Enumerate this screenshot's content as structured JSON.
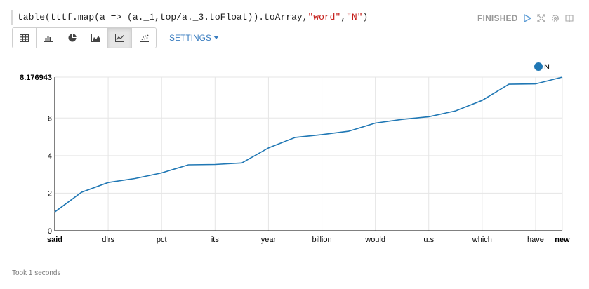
{
  "paragraph": {
    "code": "table(tttf.map(a => (a._1,top/a._3.toFloat)).toArray,",
    "code_str1": "\"word\"",
    "code_comma": ",",
    "code_str2": "\"N\"",
    "code_end": ")",
    "status": "FINISHED",
    "took": "Took 1 seconds"
  },
  "toolbar": {
    "buttons": [
      {
        "icon": "table-icon"
      },
      {
        "icon": "bar-chart-icon"
      },
      {
        "icon": "pie-chart-icon"
      },
      {
        "icon": "area-chart-icon"
      },
      {
        "icon": "line-chart-icon",
        "active": true
      },
      {
        "icon": "scatter-chart-icon"
      }
    ],
    "settings_label": "SETTINGS"
  },
  "colors": {
    "series": "#1f77b4",
    "accent": "#3a7dc0"
  },
  "chart_data": {
    "type": "line",
    "categories": [
      "said",
      "",
      "dlrs",
      "",
      "pct",
      "",
      "its",
      "",
      "year",
      "",
      "billion",
      "",
      "would",
      "",
      "u.s",
      "",
      "which",
      "",
      "have",
      "new"
    ],
    "tick_labels": [
      "said",
      "dlrs",
      "pct",
      "its",
      "year",
      "billion",
      "would",
      "u.s",
      "which",
      "have",
      "new"
    ],
    "series": [
      {
        "name": "N",
        "values": [
          1.0,
          2.05,
          2.57,
          2.78,
          3.08,
          3.51,
          3.53,
          3.61,
          4.41,
          4.97,
          5.12,
          5.3,
          5.73,
          5.93,
          6.07,
          6.38,
          6.94,
          7.8,
          7.82,
          8.176943
        ]
      }
    ],
    "y_ticks": [
      "0",
      "2",
      "4",
      "6",
      "8.176943"
    ],
    "ylim": [
      0,
      8.176943
    ],
    "grid": true,
    "legend": "top-right"
  }
}
